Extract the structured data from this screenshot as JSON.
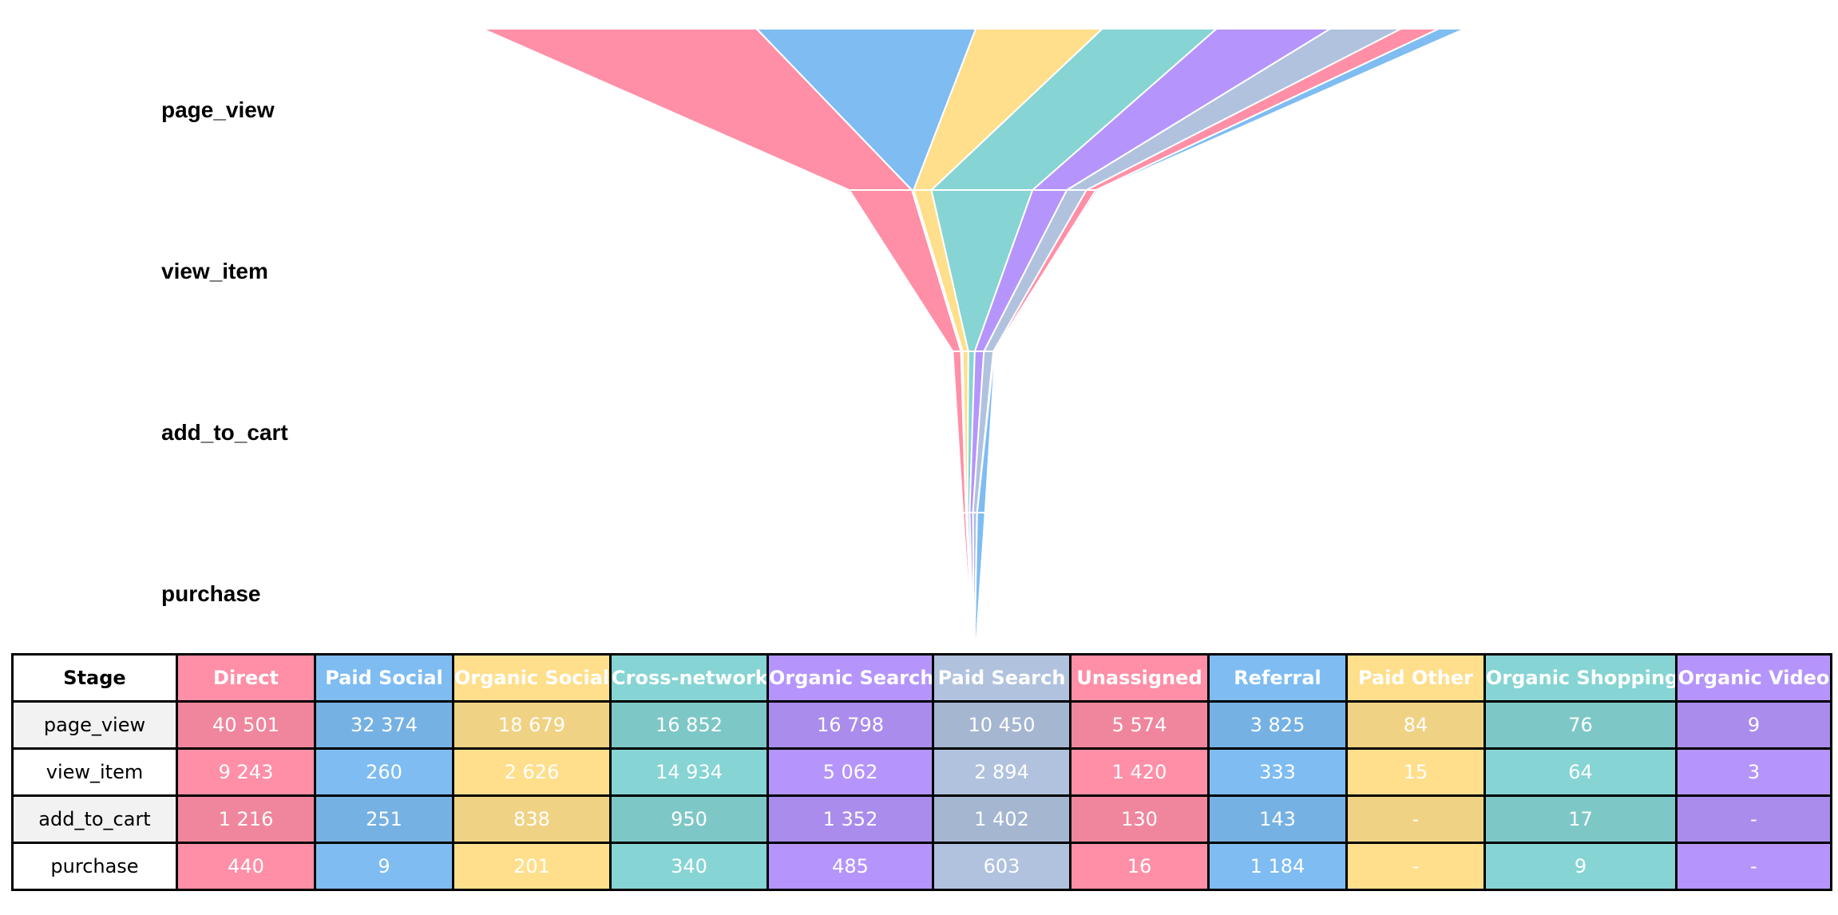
{
  "chart_data": {
    "type": "funnel",
    "stages": [
      "page_view",
      "view_item",
      "add_to_cart",
      "purchase"
    ],
    "series": [
      {
        "name": "Direct",
        "color": "#FF8FA7",
        "values": [
          40501,
          9243,
          1216,
          440
        ]
      },
      {
        "name": "Paid Social",
        "color": "#7EBCF2",
        "values": [
          32374,
          260,
          251,
          9
        ]
      },
      {
        "name": "Organic Social",
        "color": "#FFDF8C",
        "values": [
          18679,
          2626,
          838,
          201
        ]
      },
      {
        "name": "Cross-network",
        "color": "#86D4D4",
        "values": [
          16852,
          14934,
          950,
          340
        ]
      },
      {
        "name": "Organic Search",
        "color": "#B595FB",
        "values": [
          16798,
          5062,
          1352,
          485
        ]
      },
      {
        "name": "Paid Search",
        "color": "#B0C2DE",
        "values": [
          10450,
          2894,
          1402,
          603
        ]
      },
      {
        "name": "Unassigned",
        "color": "#FF8FA7",
        "values": [
          5574,
          1420,
          130,
          16
        ]
      },
      {
        "name": "Referral",
        "color": "#7EBCF2",
        "values": [
          3825,
          333,
          143,
          1184
        ]
      },
      {
        "name": "Paid Other",
        "color": "#FFDF8C",
        "values": [
          84,
          15,
          null,
          null
        ]
      },
      {
        "name": "Organic Shopping",
        "color": "#86D4D4",
        "values": [
          76,
          64,
          17,
          9
        ]
      },
      {
        "name": "Organic Video",
        "color": "#B595FB",
        "values": [
          9,
          3,
          null,
          null
        ]
      }
    ]
  },
  "table": {
    "stage_header": "Stage",
    "missing_mark": "-",
    "rows": [
      {
        "stage": "page_view",
        "cells": [
          "40 501",
          "32 374",
          "18 679",
          "16 852",
          "16 798",
          "10 450",
          "5 574",
          "3 825",
          "84",
          "76",
          "9"
        ]
      },
      {
        "stage": "view_item",
        "cells": [
          "9 243",
          "260",
          "2 626",
          "14 934",
          "5 062",
          "2 894",
          "1 420",
          "333",
          "15",
          "64",
          "3"
        ]
      },
      {
        "stage": "add_to_cart",
        "cells": [
          "1 216",
          "251",
          "838",
          "950",
          "1 352",
          "1 402",
          "130",
          "143",
          "-",
          "17",
          "-"
        ]
      },
      {
        "stage": "purchase",
        "cells": [
          "440",
          "9",
          "201",
          "340",
          "485",
          "603",
          "16",
          "1 184",
          "-",
          "9",
          "-"
        ]
      }
    ]
  }
}
